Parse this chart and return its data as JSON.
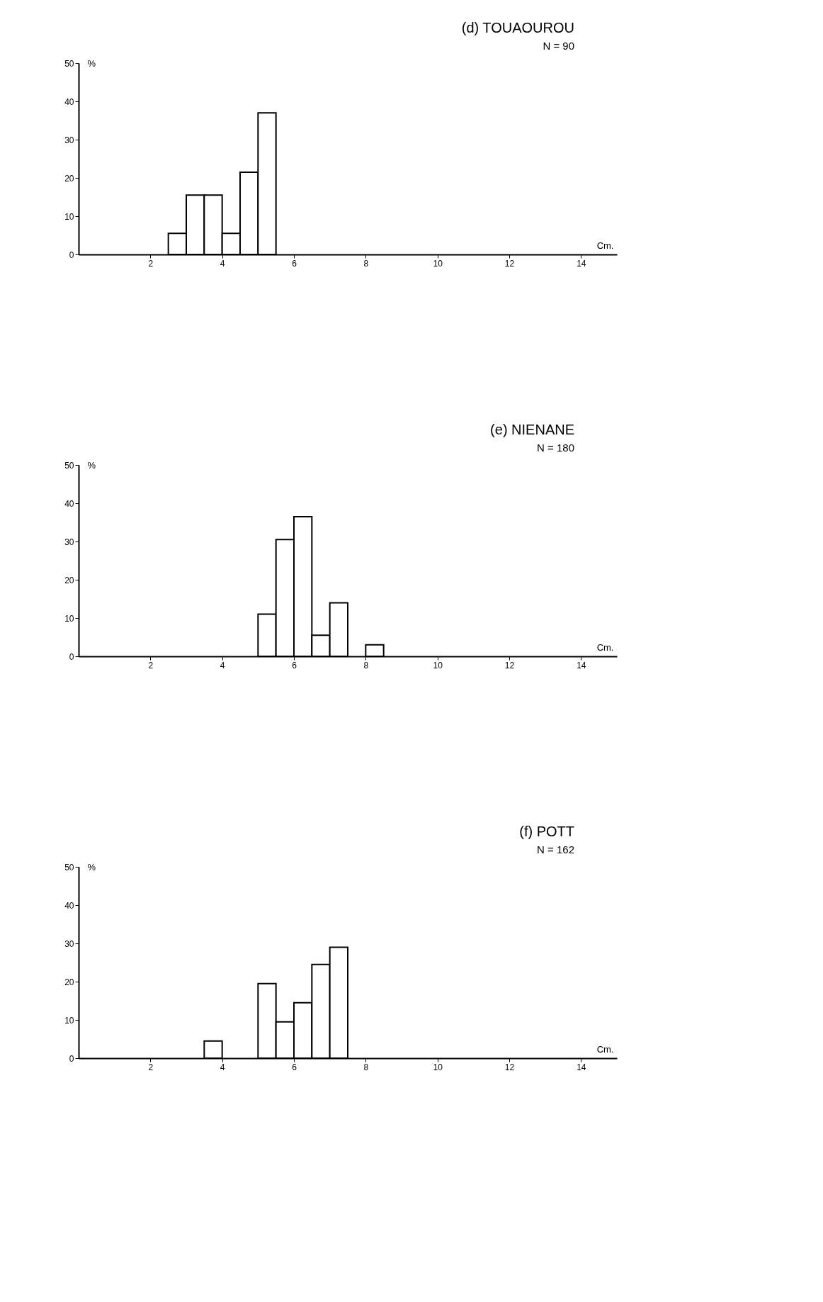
{
  "chart_data": [
    {
      "type": "histogram",
      "title": "(d)      TOUAOUROU",
      "subtitle": "N = 90",
      "xlabel": "Cm.",
      "ylabel": "%",
      "bins": [
        2.5,
        3,
        3.5,
        4,
        4.5,
        5,
        5.5
      ],
      "values": [
        5.5,
        15.5,
        15.5,
        5.5,
        21.5,
        37
      ],
      "color": "#ffffff",
      "xlim": [
        0,
        15
      ],
      "xticks": [
        2,
        4,
        6,
        8,
        10,
        12,
        14
      ],
      "ylim": [
        0,
        50
      ],
      "yticks": [
        0,
        10,
        20,
        30,
        40,
        50
      ],
      "grid": false
    },
    {
      "type": "histogram",
      "title": "(e)      NIENANE",
      "subtitle": "N = 180",
      "xlabel": "Cm.",
      "ylabel": "%",
      "bins": [
        5,
        5.5,
        6,
        6.5,
        7,
        7.5,
        8,
        8.5
      ],
      "values": [
        11,
        30.5,
        36.5,
        5.5,
        14,
        0,
        3
      ],
      "color": "#ffffff",
      "xlim": [
        0,
        15
      ],
      "xticks": [
        2,
        4,
        6,
        8,
        10,
        12,
        14
      ],
      "ylim": [
        0,
        50
      ],
      "yticks": [
        0,
        10,
        20,
        30,
        40,
        50
      ],
      "grid": false
    },
    {
      "type": "histogram",
      "title": "(f)      POTT",
      "subtitle": "N = 162",
      "xlabel": "Cm.",
      "ylabel": "%",
      "bins": [
        3.5,
        4,
        4.5,
        5,
        5.5,
        6,
        6.5,
        7,
        7.5
      ],
      "values": [
        4.5,
        0,
        0,
        19.5,
        9.5,
        14.5,
        24.5,
        29
      ],
      "color": "#ffffff",
      "xlim": [
        0,
        15
      ],
      "xticks": [
        2,
        4,
        6,
        8,
        10,
        12,
        14
      ],
      "ylim": [
        0,
        50
      ],
      "yticks": [
        0,
        10,
        20,
        30,
        40,
        50
      ],
      "grid": false
    }
  ]
}
